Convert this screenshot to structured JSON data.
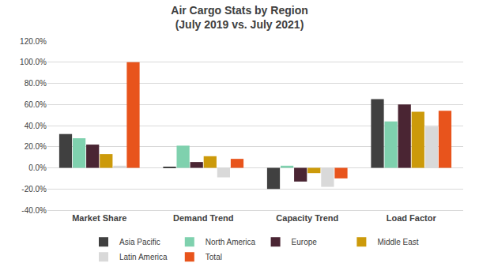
{
  "chart_data": {
    "type": "bar",
    "title": "Air Cargo Stats by Region",
    "subtitle": "(July 2019 vs. July 2021)",
    "categories": [
      "Market Share",
      "Demand Trend",
      "Capacity Trend",
      "Load Factor"
    ],
    "series": [
      {
        "name": "Asia Pacific",
        "color": "#404040",
        "values": [
          32,
          1,
          -20,
          65
        ]
      },
      {
        "name": "North America",
        "color": "#7fd1ae",
        "values": [
          28,
          21,
          2,
          44
        ]
      },
      {
        "name": "Europe",
        "color": "#4a2533",
        "values": [
          22,
          5.5,
          -13,
          60
        ]
      },
      {
        "name": "Middle East",
        "color": "#cc9a0a",
        "values": [
          13,
          11,
          -5,
          53
        ]
      },
      {
        "name": "Latin America",
        "color": "#d9d9d9",
        "values": [
          2,
          -9,
          -18,
          39
        ]
      },
      {
        "name": "Total",
        "color": "#e8541c",
        "values": [
          100,
          8.5,
          -10,
          54
        ]
      }
    ],
    "ylim": [
      -40,
      120
    ],
    "yticks": [
      {
        "value": -40,
        "label": "-40.0%"
      },
      {
        "value": -20,
        "label": "-20.0%"
      },
      {
        "value": 0,
        "label": "0.0%"
      },
      {
        "value": 20,
        "label": "20.0%"
      },
      {
        "value": 40,
        "label": "40.0%"
      },
      {
        "value": 60,
        "label": "60.0%"
      },
      {
        "value": 80,
        "label": "80.0%"
      },
      {
        "value": 100,
        "label": "100.0%"
      },
      {
        "value": 120,
        "label": "120.0%"
      }
    ],
    "grid": true,
    "legend": "bottom"
  }
}
